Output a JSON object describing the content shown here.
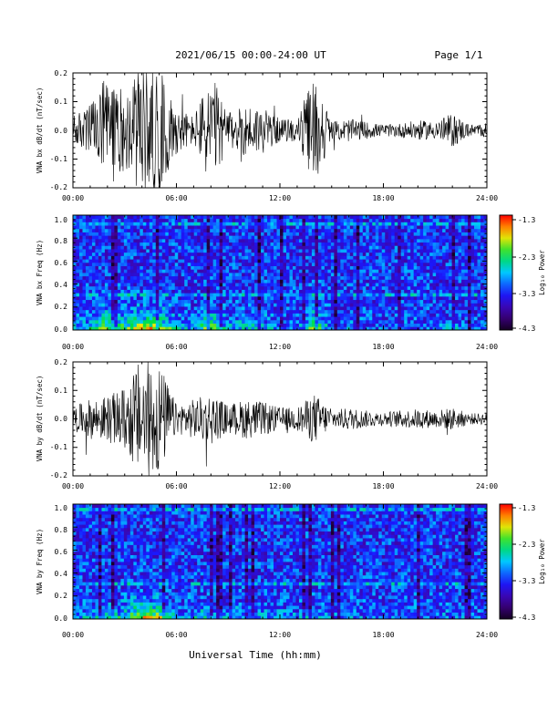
{
  "header": {
    "date_range": "2021/06/15  00:00-24:00 UT",
    "page": "Page 1/1"
  },
  "x_title": "Universal Time (hh:mm)",
  "time_ticks": [
    "00:00",
    "06:00",
    "12:00",
    "18:00",
    "24:00"
  ],
  "colorbar": {
    "label": "Log₁₀ Power",
    "tick_labels": [
      "-1.3",
      "-2.3",
      "-3.3",
      "-4.3"
    ],
    "range": [
      -4.3,
      -1.3
    ],
    "colormap": "rainbow (purple-blue-cyan-green-yellow-red)"
  },
  "chart_data": [
    {
      "type": "line",
      "ylabel": "VNA bx dB/dt (nT/sec)",
      "xlim_hours": [
        0,
        24
      ],
      "ylim": [
        -0.2,
        0.2
      ],
      "ytick_labels": [
        "0.2",
        "0.1",
        "0.0",
        "-0.1",
        "-0.2"
      ],
      "xtick_labels": [
        "00:00",
        "06:00",
        "12:00",
        "18:00",
        "24:00"
      ],
      "envelope_hours": [
        0,
        1,
        2,
        3,
        4,
        5,
        6,
        7,
        8,
        9,
        10,
        11,
        12,
        13,
        14,
        15,
        16,
        17,
        18,
        19,
        20,
        21,
        22,
        23,
        24
      ],
      "envelope_amplitude": [
        0.05,
        0.09,
        0.2,
        0.14,
        0.22,
        0.22,
        0.08,
        0.05,
        0.2,
        0.06,
        0.09,
        0.08,
        0.04,
        0.04,
        0.2,
        0.03,
        0.04,
        0.03,
        0.02,
        0.025,
        0.035,
        0.03,
        0.06,
        0.02,
        0.025
      ]
    },
    {
      "type": "heatmap",
      "ylabel": "VNA bx Freq (Hz)",
      "xlim_hours": [
        0,
        24
      ],
      "ylim": [
        0.0,
        1.0
      ],
      "ytick_labels": [
        "1.0",
        "0.8",
        "0.6",
        "0.4",
        "0.2",
        "0.0"
      ],
      "xtick_labels": [
        "00:00",
        "06:00",
        "12:00",
        "18:00",
        "24:00"
      ],
      "z_range": [
        -4.3,
        -1.3
      ]
    },
    {
      "type": "line",
      "ylabel": "VNA by dB/dt (nT/sec)",
      "xlim_hours": [
        0,
        24
      ],
      "ylim": [
        -0.2,
        0.2
      ],
      "ytick_labels": [
        "0.2",
        "0.1",
        "0.0",
        "-0.1",
        "-0.2"
      ],
      "xtick_labels": [
        "00:00",
        "06:00",
        "12:00",
        "18:00",
        "24:00"
      ],
      "envelope_hours": [
        0,
        1,
        2,
        3,
        4,
        5,
        6,
        7,
        8,
        9,
        10,
        11,
        12,
        13,
        14,
        15,
        16,
        17,
        18,
        19,
        20,
        21,
        22,
        23,
        24
      ],
      "envelope_amplitude": [
        0.04,
        0.07,
        0.08,
        0.11,
        0.22,
        0.2,
        0.05,
        0.07,
        0.09,
        0.05,
        0.07,
        0.06,
        0.04,
        0.04,
        0.09,
        0.03,
        0.04,
        0.03,
        0.025,
        0.03,
        0.035,
        0.03,
        0.04,
        0.02,
        0.02
      ]
    },
    {
      "type": "heatmap",
      "ylabel": "VNA by Freq (Hz)",
      "xlim_hours": [
        0,
        24
      ],
      "ylim": [
        0.0,
        1.0
      ],
      "ytick_labels": [
        "1.0",
        "0.8",
        "0.6",
        "0.4",
        "0.2",
        "0.0"
      ],
      "xtick_labels": [
        "00:00",
        "06:00",
        "12:00",
        "18:00",
        "24:00"
      ],
      "z_range": [
        -4.3,
        -1.3
      ]
    }
  ]
}
